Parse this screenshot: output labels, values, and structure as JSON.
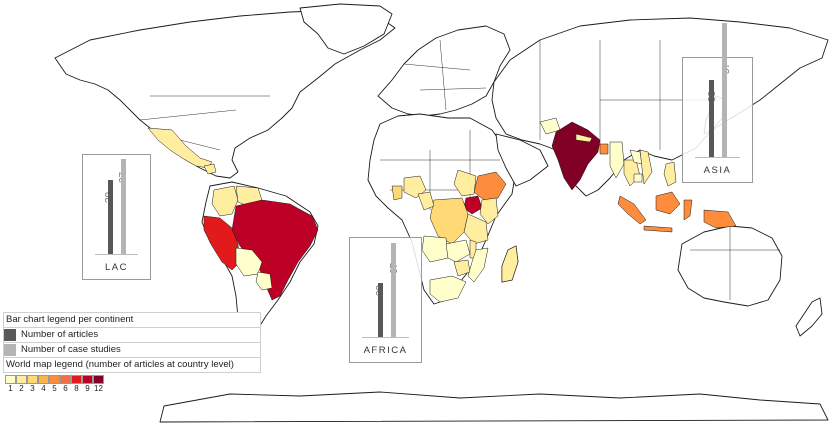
{
  "legend": {
    "bar_title": "Bar chart legend per continent",
    "articles_label": "Number of articles",
    "case_label": "Number of case studies",
    "articles_color": "#585858",
    "case_color": "#b4b4b4",
    "map_title": "World map legend  (number of articles  at country level)",
    "scale": [
      {
        "value": "1",
        "color": "#ffffcc"
      },
      {
        "value": "2",
        "color": "#ffeda0"
      },
      {
        "value": "3",
        "color": "#fed976"
      },
      {
        "value": "4",
        "color": "#feb24c"
      },
      {
        "value": "5",
        "color": "#fd8d3c"
      },
      {
        "value": "6",
        "color": "#f46d43"
      },
      {
        "value": "8",
        "color": "#e31a1c"
      },
      {
        "value": "9",
        "color": "#bd0026"
      },
      {
        "value": "12",
        "color": "#800026"
      }
    ]
  },
  "continents": {
    "lac": {
      "name": "LAC",
      "articles": 29,
      "case_studies": 37
    },
    "africa": {
      "name": "AFRICA",
      "articles": 39,
      "case_studies": 67
    },
    "asia": {
      "name": "ASIA",
      "articles": 33,
      "case_studies": 57
    }
  },
  "country_values": {
    "mexico": 1,
    "guatemala": 2,
    "colombia": 2,
    "venezuela": 2,
    "peru": 8,
    "brazil": 9,
    "bolivia": 1,
    "paraguay": 1,
    "argentina_north": 2,
    "uganda": 9,
    "ethiopia": 5,
    "kenya": 2,
    "tanzania": 2,
    "drc": 3,
    "nigeria": 2,
    "ghana": 3,
    "cameroon": 2,
    "zambia": 1,
    "zimbabwe": 2,
    "mozambique": 1,
    "malawi": 2,
    "south_africa": 1,
    "madagascar": 2,
    "angola": 1,
    "sudan": 2,
    "india": 12,
    "nepal": 2,
    "bangladesh": 5,
    "myanmar": 1,
    "thailand": 2,
    "vietnam": 2,
    "laos": 1,
    "cambodia": 1,
    "indonesia": 5,
    "philippines": 2,
    "afghanistan": 1,
    "pakistan": 1,
    "papua_new_guinea": 2
  }
}
